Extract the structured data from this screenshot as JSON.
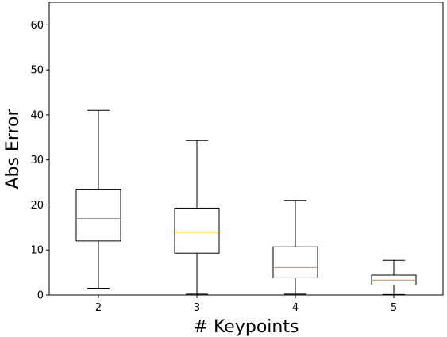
{
  "chart_data": {
    "type": "box",
    "xlabel": "# Keypoints",
    "ylabel": "Abs Error",
    "ylim": [
      0,
      65
    ],
    "yticks": [
      0,
      10,
      20,
      30,
      40,
      50,
      60
    ],
    "categories": [
      "2",
      "3",
      "4",
      "5"
    ],
    "boxes": [
      {
        "category": "2",
        "whisker_low": 1.5,
        "q1": 12.0,
        "median": 17.0,
        "q3": 23.5,
        "whisker_high": 41.0
      },
      {
        "category": "3",
        "whisker_low": 0.2,
        "q1": 9.3,
        "median": 14.0,
        "q3": 19.3,
        "whisker_high": 34.3
      },
      {
        "category": "4",
        "whisker_low": 0.2,
        "q1": 3.8,
        "median": 6.1,
        "q3": 10.7,
        "whisker_high": 21.0
      },
      {
        "category": "5",
        "whisker_low": 0.1,
        "q1": 2.2,
        "median": 3.3,
        "q3": 4.4,
        "whisker_high": 7.7
      }
    ],
    "grid": false,
    "colors": {
      "box": "#000000",
      "median": "#ff7f0e",
      "background": "#ffffff"
    }
  }
}
